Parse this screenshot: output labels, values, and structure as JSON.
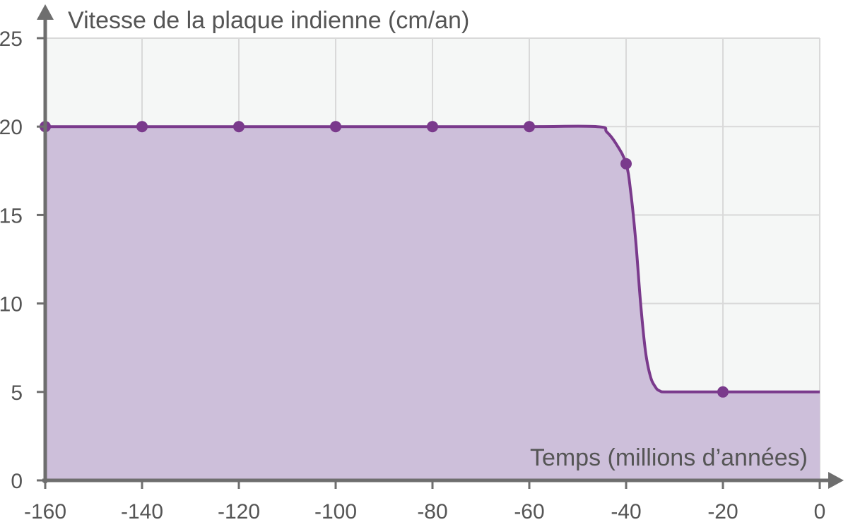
{
  "chart_data": {
    "type": "area",
    "ylabel": "Vitesse de la plaque indienne (cm/an)",
    "xlabel": "Temps (millions d’années)",
    "xlim": [
      -160,
      0
    ],
    "ylim": [
      0,
      25
    ],
    "xticks": [
      -160,
      -140,
      -120,
      -100,
      -80,
      -60,
      -40,
      -20,
      0
    ],
    "yticks": [
      0,
      5,
      10,
      15,
      20,
      25
    ],
    "grid": true,
    "series": [
      {
        "curve": [
          [
            -160,
            20
          ],
          [
            -140,
            20
          ],
          [
            -120,
            20
          ],
          [
            -100,
            20
          ],
          [
            -80,
            20
          ],
          [
            -60,
            20
          ],
          [
            -46,
            20
          ],
          [
            -44,
            19.7
          ],
          [
            -42,
            19.0
          ],
          [
            -40,
            17.9
          ],
          [
            -39,
            16.2
          ],
          [
            -38,
            13.5
          ],
          [
            -37,
            10.0
          ],
          [
            -36,
            7.3
          ],
          [
            -35,
            5.9
          ],
          [
            -34,
            5.3
          ],
          [
            -33,
            5.05
          ],
          [
            -31,
            5
          ],
          [
            -20,
            5
          ],
          [
            0,
            5
          ]
        ],
        "markers": [
          [
            -160,
            20
          ],
          [
            -140,
            20
          ],
          [
            -120,
            20
          ],
          [
            -100,
            20
          ],
          [
            -80,
            20
          ],
          [
            -60,
            20
          ],
          [
            -40,
            17.9
          ],
          [
            -20,
            5
          ]
        ]
      }
    ],
    "colors": {
      "line": "#7a3a8c",
      "fill": "#cdbfda",
      "plot_bg": "#f5f7f6",
      "grid": "#d9d9d9",
      "axis": "#6e6e6e",
      "text": "#555555"
    }
  }
}
